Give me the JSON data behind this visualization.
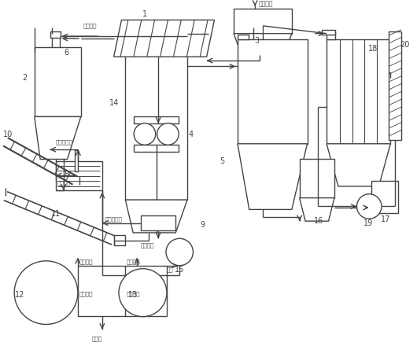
{
  "bg_color": "#ffffff",
  "line_color": "#444444",
  "lw": 1.0,
  "figsize": [
    5.3,
    4.54
  ],
  "dpi": 100,
  "xlim": [
    0,
    10.6
  ],
  "ylim": [
    0,
    9.08
  ]
}
